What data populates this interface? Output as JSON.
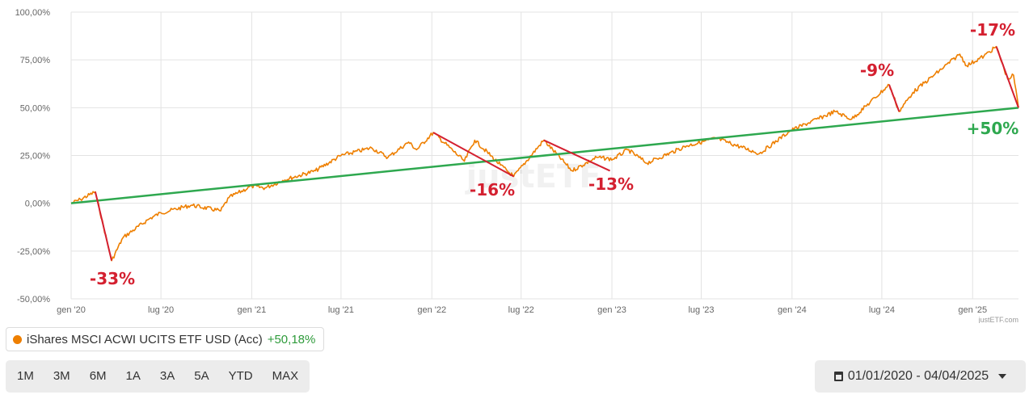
{
  "chart_data": {
    "type": "line",
    "yticks": [
      "100,00%",
      "75,00%",
      "50,00%",
      "25,00%",
      "0,00%",
      "-25,00%",
      "-50,00%"
    ],
    "yvalues": [
      100,
      75,
      50,
      25,
      0,
      -25,
      -50
    ],
    "ylim": [
      -50,
      100
    ],
    "xticks": [
      "gen '20",
      "lug '20",
      "gen '21",
      "lug '21",
      "gen '22",
      "lug '22",
      "gen '23",
      "lug '23",
      "gen '24",
      "lug '24",
      "gen '25"
    ],
    "xtick_dates": [
      "2020-01-01",
      "2020-07-01",
      "2021-01-01",
      "2021-07-01",
      "2022-01-01",
      "2022-07-01",
      "2023-01-01",
      "2023-07-01",
      "2024-01-01",
      "2024-07-01",
      "2025-01-01"
    ],
    "xlim": [
      "2020-01-01",
      "2025-04-04"
    ],
    "grid": true,
    "series": [
      {
        "name": "iShares MSCI ACWI UCITS ETF USD (Acc)",
        "color": "#ee7f00",
        "points": [
          [
            "2020-01-01",
            0
          ],
          [
            "2020-01-20",
            2
          ],
          [
            "2020-02-19",
            6
          ],
          [
            "2020-03-23",
            -30
          ],
          [
            "2020-04-15",
            -18
          ],
          [
            "2020-06-08",
            -8
          ],
          [
            "2020-07-01",
            -5
          ],
          [
            "2020-09-01",
            -1
          ],
          [
            "2020-10-30",
            -4
          ],
          [
            "2020-11-16",
            3
          ],
          [
            "2021-01-01",
            9
          ],
          [
            "2021-01-28",
            8
          ],
          [
            "2021-03-05",
            12
          ],
          [
            "2021-05-10",
            17
          ],
          [
            "2021-07-01",
            25
          ],
          [
            "2021-09-01",
            29
          ],
          [
            "2021-10-04",
            24
          ],
          [
            "2021-11-15",
            32
          ],
          [
            "2021-12-01",
            28
          ],
          [
            "2022-01-04",
            37
          ],
          [
            "2022-03-08",
            22
          ],
          [
            "2022-03-29",
            33
          ],
          [
            "2022-05-20",
            20
          ],
          [
            "2022-06-16",
            14
          ],
          [
            "2022-08-16",
            33
          ],
          [
            "2022-10-12",
            17
          ],
          [
            "2022-12-01",
            24
          ],
          [
            "2023-01-03",
            23
          ],
          [
            "2023-02-02",
            28
          ],
          [
            "2023-03-13",
            21
          ],
          [
            "2023-06-01",
            30
          ],
          [
            "2023-07-31",
            34
          ],
          [
            "2023-10-27",
            26
          ],
          [
            "2023-12-29",
            38
          ],
          [
            "2024-03-28",
            48
          ],
          [
            "2024-05-01",
            44
          ],
          [
            "2024-07-16",
            62
          ],
          [
            "2024-08-05",
            48
          ],
          [
            "2024-09-02",
            58
          ],
          [
            "2024-12-06",
            78
          ],
          [
            "2024-12-20",
            72
          ],
          [
            "2025-01-24",
            77
          ],
          [
            "2025-02-18",
            82
          ],
          [
            "2025-03-13",
            65
          ],
          [
            "2025-03-25",
            67
          ],
          [
            "2025-04-04",
            50
          ]
        ]
      }
    ],
    "trend_line": {
      "color": "#2ea84f",
      "from": [
        "2020-01-01",
        0
      ],
      "to": [
        "2025-04-04",
        50
      ]
    },
    "drawdown_color": "#d42030",
    "drawdowns": [
      {
        "from": [
          "2020-02-19",
          6
        ],
        "to": [
          "2020-03-23",
          -30
        ],
        "label": "-33%"
      },
      {
        "from": [
          "2022-01-04",
          37
        ],
        "to": [
          "2022-06-16",
          14
        ],
        "label": "-16%"
      },
      {
        "from": [
          "2022-08-16",
          33
        ],
        "to": [
          "2022-12-28",
          17
        ],
        "label": "-13%"
      },
      {
        "from": [
          "2024-07-16",
          62
        ],
        "to": [
          "2024-08-05",
          48
        ],
        "label": "-9%"
      },
      {
        "from": [
          "2025-02-18",
          82
        ],
        "to": [
          "2025-04-04",
          50
        ],
        "label": "-17%"
      }
    ],
    "annotations": [
      {
        "label": "+50%",
        "color": "#2ea84f"
      }
    ],
    "watermark": "justETF",
    "credit": "justETF.com"
  },
  "legend": {
    "name": "iShares MSCI ACWI UCITS ETF USD (Acc)",
    "performance": "+50,18%",
    "color": "#ee7f00"
  },
  "periods": [
    "1M",
    "3M",
    "6M",
    "1A",
    "3A",
    "5A",
    "YTD",
    "MAX"
  ],
  "date_range": "01/01/2020 - 04/04/2025"
}
